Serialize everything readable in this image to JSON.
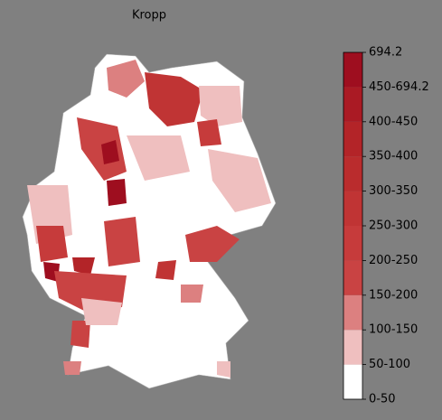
{
  "title": "Kropp",
  "legend": {
    "labels": [
      "0-50",
      "50-100",
      "100-150",
      "150-200",
      "200-250",
      "250-300",
      "300-350",
      "350-400",
      "400-450",
      "450-694.2",
      "694.2"
    ],
    "colors": [
      "#ffffff",
      "#efbfbf",
      "#dc8080",
      "#c94343",
      "#c63b3b",
      "#c03434",
      "#ba2c2d",
      "#b32428",
      "#aa1a24",
      "#9e0e1f"
    ]
  }
}
